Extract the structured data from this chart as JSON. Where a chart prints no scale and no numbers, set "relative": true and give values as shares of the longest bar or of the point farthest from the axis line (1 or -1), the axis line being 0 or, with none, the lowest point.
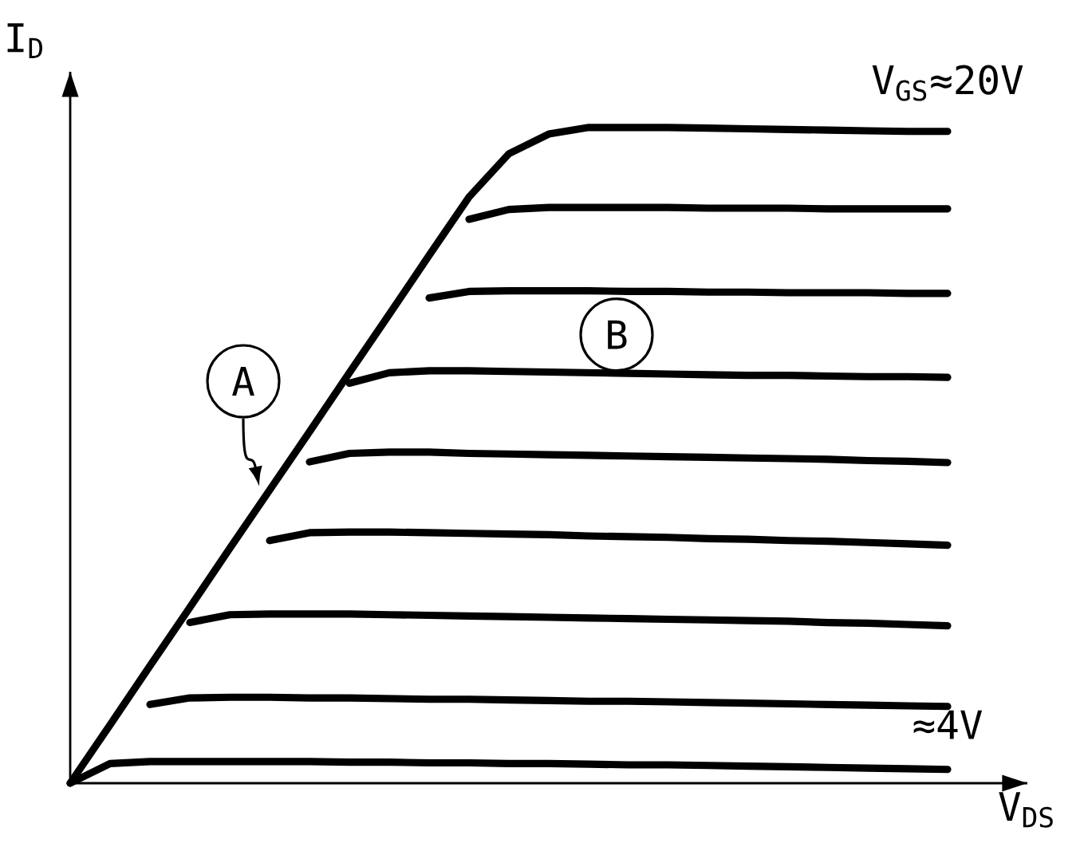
{
  "chart_data": {
    "type": "line",
    "relative": true,
    "xlabel": "V$_{DS}$",
    "ylabel": "I$_{D}$",
    "annotations": [
      "A",
      "B"
    ],
    "categories": [
      null,
      null,
      null,
      null,
      null,
      null,
      null,
      null,
      null,
      null,
      null,
      null,
      null,
      null,
      null,
      null,
      null,
      null,
      null,
      null,
      null,
      null,
      null
    ],
    "series": [
      {
        "name": "V$_{GS}$≈20V",
        "color": "#000000",
        "values": [
          0,
          0.089,
          0.179,
          0.268,
          0.358,
          0.447,
          0.536,
          0.626,
          0.715,
          0.805,
          0.894,
          0.96,
          0.99,
          1,
          1,
          1,
          0.999,
          0.998,
          0.997,
          0.996,
          0.995,
          0.994,
          0.994
        ]
      },
      {
        "color": "#000000",
        "values": [
          null,
          null,
          null,
          null,
          null,
          null,
          null,
          null,
          null,
          null,
          0.86,
          0.875,
          0.878,
          0.878,
          0.878,
          0.878,
          0.877,
          0.877,
          0.877,
          0.876,
          0.876,
          0.876,
          0.876
        ]
      },
      {
        "color": "#000000",
        "values": [
          null,
          null,
          null,
          null,
          null,
          null,
          null,
          null,
          null,
          0.74,
          0.75,
          0.751,
          0.751,
          0.751,
          0.75,
          0.75,
          0.749,
          0.749,
          0.748,
          0.748,
          0.748,
          0.747,
          0.747
        ]
      },
      {
        "color": "#000000",
        "values": [
          null,
          null,
          null,
          null,
          null,
          null,
          null,
          0.61,
          0.626,
          0.629,
          0.629,
          0.628,
          0.627,
          0.626,
          0.625,
          0.624,
          0.623,
          0.622,
          0.622,
          0.621,
          0.62,
          0.62,
          0.619
        ]
      },
      {
        "color": "#000000",
        "values": [
          null,
          null,
          null,
          null,
          null,
          null,
          0.49,
          0.503,
          0.505,
          0.505,
          0.503,
          0.502,
          0.501,
          0.5,
          0.499,
          0.498,
          0.497,
          0.496,
          0.495,
          0.494,
          0.492,
          0.491,
          0.489
        ]
      },
      {
        "color": "#000000",
        "values": [
          null,
          null,
          null,
          null,
          null,
          0.37,
          0.382,
          0.383,
          0.383,
          0.382,
          0.381,
          0.38,
          0.379,
          0.377,
          0.376,
          0.375,
          0.373,
          0.372,
          0.37,
          0.369,
          0.367,
          0.365,
          0.363
        ]
      },
      {
        "color": "#000000",
        "values": [
          null,
          null,
          null,
          0.245,
          0.257,
          0.258,
          0.258,
          0.258,
          0.257,
          0.256,
          0.255,
          0.254,
          0.253,
          0.252,
          0.251,
          0.25,
          0.249,
          0.248,
          0.247,
          0.245,
          0.244,
          0.242,
          0.24
        ]
      },
      {
        "color": "#000000",
        "values": [
          null,
          null,
          0.12,
          0.13,
          0.131,
          0.131,
          0.13,
          0.13,
          0.129,
          0.128,
          0.128,
          0.127,
          0.126,
          0.125,
          0.125,
          0.124,
          0.123,
          0.122,
          0.121,
          0.12,
          0.119,
          0.118,
          0.117
        ]
      },
      {
        "name": "≈4V",
        "color": "#000000",
        "values": [
          0,
          0.03,
          0.033,
          0.033,
          0.033,
          0.033,
          0.033,
          0.032,
          0.032,
          0.031,
          0.031,
          0.03,
          0.03,
          0.029,
          0.028,
          0.028,
          0.027,
          0.026,
          0.025,
          0.024,
          0.023,
          0.022,
          0.021
        ]
      }
    ]
  }
}
